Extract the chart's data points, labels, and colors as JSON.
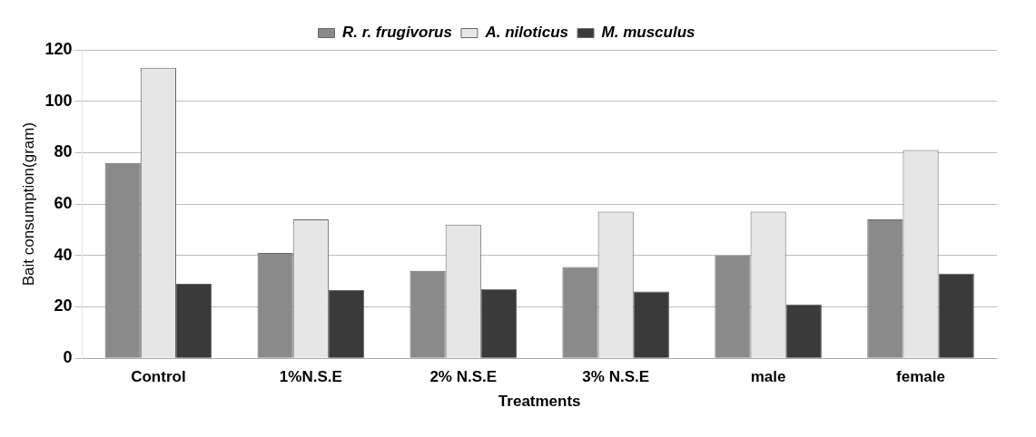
{
  "chart_data": {
    "type": "bar",
    "xlabel": "Treatments",
    "ylabel": "Bait consumption(gram)",
    "categories": [
      "Control",
      "1%N.S.E",
      "2% N.S.E",
      "3% N.S.E",
      "male",
      "female"
    ],
    "series": [
      {
        "name": "R. r. frugivorus",
        "color": "#8a8a8a",
        "values": [
          76,
          41,
          34,
          35.5,
          40,
          54
        ]
      },
      {
        "name": "A. niloticus",
        "color": "#e6e6e6",
        "values": [
          113,
          54,
          52,
          57,
          57,
          81
        ]
      },
      {
        "name": "M. musculus",
        "color": "#3a3a3a",
        "values": [
          29,
          26.5,
          27,
          26,
          21,
          33
        ]
      }
    ],
    "ylim": [
      0,
      120
    ],
    "yticks": [
      0,
      20,
      40,
      60,
      80,
      100,
      120
    ],
    "grid": "y",
    "legend": "top"
  }
}
